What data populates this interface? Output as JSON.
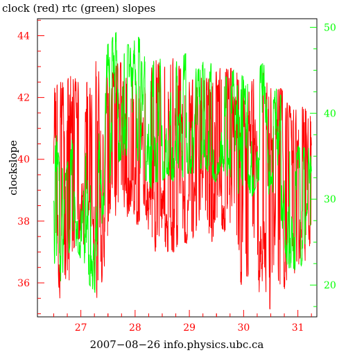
{
  "chart_data": {
    "type": "line",
    "title": "clock (red) rtc (green) slopes",
    "xlabel": "2007−08−26 info.physics.ubc.ca",
    "ylabel": "clockslope",
    "xlim": [
      26.2,
      31.35
    ],
    "ylim_left": [
      34.9,
      44.55
    ],
    "ylim_right": [
      16.3,
      51.0
    ],
    "x_ticks": [
      27,
      28,
      29,
      30,
      31
    ],
    "y_ticks_left": [
      36,
      38,
      40,
      42,
      44
    ],
    "y_ticks_right": [
      20,
      30,
      40,
      50
    ],
    "grid": false,
    "series": [
      {
        "name": "clock",
        "axis": "left",
        "color": "#ff0000",
        "low": [
          38.0,
          35.5,
          35.6,
          36.0,
          37.0,
          37.0,
          38.5,
          35.4,
          36.0,
          37.2,
          37.9,
          38.7,
          38.0,
          38.5,
          37.8,
          38.6,
          37.5,
          37.0,
          37.5,
          37.0,
          37.0,
          37.3,
          37.3,
          37.2,
          37.8,
          38.6,
          37.3,
          37.4,
          37.8,
          37.5,
          38.0,
          36.0,
          35.8,
          36.9,
          35.5,
          36.2,
          35.0,
          36.8,
          35.4,
          36.2,
          36.2,
          36.0,
          36.5,
          37.5
        ],
        "high": [
          42.3,
          42.5,
          42.5,
          42.8,
          42.5,
          42.5,
          42.5,
          43.2,
          42.5,
          42.8,
          42.9,
          43.2,
          42.8,
          42.6,
          42.9,
          42.8,
          42.8,
          43.3,
          43.0,
          43.0,
          43.3,
          43.0,
          42.5,
          42.5,
          43.0,
          42.7,
          42.6,
          42.8,
          43.0,
          42.9,
          43.0,
          42.7,
          42.5,
          42.6,
          42.6,
          42.8,
          42.3,
          42.3,
          42.3,
          41.8,
          41.6,
          41.7,
          41.7,
          41.8
        ]
      },
      {
        "name": "rtc",
        "axis": "right",
        "color": "#00ff00",
        "low": [
          20.0,
          20.0,
          21.0,
          26.0,
          24.0,
          22.0,
          20.0,
          19.0,
          27.0,
          31.0,
          33.0,
          34.5,
          35.0,
          36.0,
          33.0,
          33.0,
          31.0,
          32.0,
          32.0,
          33.0,
          32.0,
          32.0,
          33.0,
          33.0,
          33.0,
          34.0,
          33.0,
          32.0,
          34.0,
          32.0,
          33.0,
          30.0,
          33.0,
          30.0,
          32.0,
          31.0,
          29.0,
          28.0,
          27.5,
          22.0,
          22.0,
          21.0,
          25.0,
          27.0
        ],
        "high": [
          40.0,
          34.0,
          33.0,
          37.0,
          38.0,
          37.5,
          36.0,
          38.0,
          41.0,
          48.0,
          49.0,
          50.0,
          48.0,
          48.0,
          49.0,
          48.0,
          48.0,
          47.0,
          48.0,
          46.0,
          46.0,
          46.0,
          47.0,
          46.0,
          45.0,
          46.0,
          46.0,
          45.0,
          45.0,
          44.0,
          45.0,
          44.0,
          45.0,
          44.5,
          45.0,
          46.0,
          42.0,
          43.0,
          42.0,
          38.0,
          37.0,
          36.0,
          36.0,
          36.0
        ]
      }
    ]
  }
}
